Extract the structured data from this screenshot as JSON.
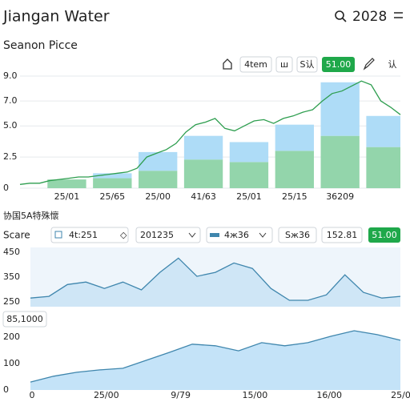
{
  "header": {
    "title": "Jiangan Water",
    "year": "2028"
  },
  "subtitle": "Seanon Picce",
  "toolbar": {
    "items": [
      "4tem",
      "ш",
      "S认"
    ],
    "button": "51.00",
    "last": "认"
  },
  "section_title": "协国5A特殊懷",
  "filters": {
    "label": "Scare",
    "inputs": [
      "4t:251",
      "201235",
      "4ж36",
      "Sж36",
      "152.81"
    ],
    "button": "51.00"
  },
  "chart_data": [
    {
      "type": "bar",
      "stacked": true,
      "categories": [
        "25/01",
        "25/65",
        "25/00",
        "41/63",
        "25/01",
        "25/15",
        "36209",
        null
      ],
      "series": [
        {
          "color": "#93d5ab",
          "values": [
            0.7,
            0.8,
            1.4,
            2.3,
            2.1,
            3.0,
            4.2,
            3.3
          ]
        },
        {
          "color": "#aedcf7",
          "values": [
            0,
            0.4,
            1.5,
            1.9,
            1.6,
            2.1,
            4.3,
            2.5
          ]
        }
      ],
      "line": {
        "color": "#2e9e4f",
        "values": [
          0.3,
          0.4,
          0.4,
          0.6,
          0.7,
          0.8,
          0.9,
          0.9,
          1.0,
          1.1,
          1.2,
          1.3,
          1.6,
          2.5,
          2.8,
          3.1,
          3.6,
          4.5,
          5.1,
          5.3,
          5.6,
          4.8,
          4.6,
          5.0,
          5.4,
          5.5,
          5.2,
          5.6,
          5.8,
          6.1,
          6.3,
          7.0,
          7.6,
          7.8,
          8.2,
          8.6,
          8.3,
          7.0,
          6.5,
          5.9
        ]
      },
      "ylim": [
        0,
        9
      ],
      "yticks": [
        0,
        2.5,
        {
          "value": 5,
          "label": "5.0"
        },
        {
          "value": 7,
          "label": "7.0"
        },
        {
          "value": 9,
          "label": "9.0"
        }
      ],
      "grid": true
    },
    {
      "type": "area",
      "color": "#3f86ad",
      "fill": "#cfe6f6",
      "values": [
        265,
        272,
        320,
        330,
        304,
        330,
        298,
        369,
        427,
        353,
        369,
        407,
        385,
        304,
        256,
        256,
        278,
        359,
        288,
        265,
        272
      ],
      "ylim": [
        230,
        470
      ],
      "yticks": [
        250,
        350,
        450
      ],
      "grid": false
    },
    {
      "type": "area",
      "color": "#3f86ad",
      "fill": "#c4e3f8",
      "annotation": "85,1000",
      "values": [
        30,
        52,
        67,
        76,
        82,
        112,
        142,
        173,
        167,
        148,
        179,
        167,
        179,
        203,
        224,
        209,
        188
      ],
      "x_labels": [
        "0",
        "25/00",
        "9/79",
        "15/00",
        "16/00",
        "25/00"
      ],
      "ylim": [
        0,
        230
      ],
      "yticks": [
        0,
        100,
        200
      ],
      "grid": false
    }
  ]
}
